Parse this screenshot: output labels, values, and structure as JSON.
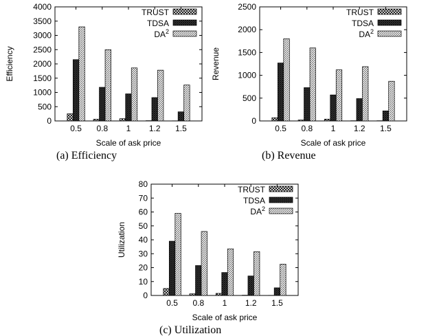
{
  "figure": {
    "captions": [
      "(a)  Efficiency",
      "(b)  Revenue",
      "(c)  Utilization"
    ]
  },
  "legend": {
    "entries": [
      {
        "label": "TRUST",
        "sup": ""
      },
      {
        "label": "TDSA",
        "sup": ""
      },
      {
        "label": "DA",
        "sup": "2"
      }
    ]
  },
  "chart_data": [
    {
      "type": "bar",
      "title": "",
      "xlabel": "Scale of ask price",
      "ylabel": "Efficiency",
      "categories": [
        "0.5",
        "0.8",
        "1",
        "1.2",
        "1.5"
      ],
      "ylim": [
        0,
        4000
      ],
      "yticks": [
        "0",
        "500",
        "1000",
        "1500",
        "2000",
        "2500",
        "3000",
        "3500",
        "4000"
      ],
      "legend_position": "top-right",
      "grid": false,
      "series": [
        {
          "name": "TRUST",
          "values": [
            250,
            60,
            80,
            10,
            5
          ]
        },
        {
          "name": "TDSA",
          "values": [
            2150,
            1180,
            950,
            820,
            320
          ]
        },
        {
          "name": "DA2",
          "values": [
            3300,
            2500,
            1860,
            1780,
            1260
          ]
        }
      ]
    },
    {
      "type": "bar",
      "title": "",
      "xlabel": "Scale of ask price",
      "ylabel": "Revenue",
      "categories": [
        "0.5",
        "0.8",
        "1",
        "1.2",
        "1.5"
      ],
      "ylim": [
        0,
        2500
      ],
      "yticks": [
        "0",
        "500",
        "1000",
        "1500",
        "2000",
        "2500"
      ],
      "legend_position": "top-right",
      "grid": false,
      "series": [
        {
          "name": "TRUST",
          "values": [
            70,
            20,
            40,
            5,
            5
          ]
        },
        {
          "name": "TDSA",
          "values": [
            1270,
            730,
            570,
            490,
            220
          ]
        },
        {
          "name": "DA2",
          "values": [
            1800,
            1600,
            1120,
            1190,
            870
          ]
        }
      ]
    },
    {
      "type": "bar",
      "title": "",
      "xlabel": "Scale of ask price",
      "ylabel": "Utilization",
      "categories": [
        "0.5",
        "0.8",
        "1",
        "1.2",
        "1.5"
      ],
      "ylim": [
        0,
        80
      ],
      "yticks": [
        "0",
        "10",
        "20",
        "30",
        "40",
        "50",
        "60",
        "70",
        "80"
      ],
      "legend_position": "top-right",
      "grid": false,
      "series": [
        {
          "name": "TRUST",
          "values": [
            5,
            1.2,
            1.5,
            0.2,
            0.1
          ]
        },
        {
          "name": "TDSA",
          "values": [
            39,
            21.5,
            16.5,
            14,
            5.5
          ]
        },
        {
          "name": "DA2",
          "values": [
            59,
            46,
            33.5,
            31.5,
            22.5
          ]
        }
      ]
    }
  ]
}
